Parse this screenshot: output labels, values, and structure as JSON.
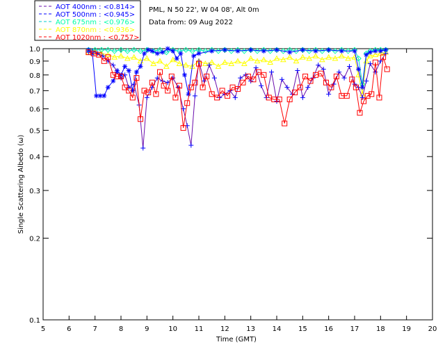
{
  "chart_data": {
    "type": "line",
    "title_lines": [
      "PML, N 50 22', W 04 08', Alt 0m",
      "Data from: 09 Aug 2022"
    ],
    "xlabel": "Time (GMT)",
    "ylabel": "Single Scattering Albedo (ω)",
    "xlim": [
      5,
      20
    ],
    "ylim": [
      0.1,
      1.0
    ],
    "yscale": "log",
    "grid": false,
    "legend_position": "top-left",
    "x_ticks": [
      5,
      6,
      7,
      8,
      9,
      10,
      11,
      12,
      13,
      14,
      15,
      16,
      17,
      18,
      19,
      20
    ],
    "x_tick_labels": [
      "5",
      "6",
      "7",
      "8",
      "9",
      "10",
      "11",
      "12",
      "13",
      "14",
      "15",
      "16",
      "17",
      "18",
      "19",
      "20"
    ],
    "y_ticks": [
      0.1,
      0.2,
      0.3,
      0.4,
      0.5,
      0.6,
      0.7,
      0.8,
      0.9,
      1.0
    ],
    "y_tick_labels": [
      "0.1",
      "0.2",
      "0.3",
      "0.4",
      "0.5",
      "0.6",
      "0.7",
      "0.8",
      "0.9",
      "1.0"
    ],
    "series": [
      {
        "name": "AOT 400nm",
        "legend_label": "AOT  400nm : <0.814>",
        "color": "#0000ff",
        "line_color": "#6a0dad",
        "marker": "plus",
        "x": [
          6.75,
          6.9,
          7.1,
          7.3,
          7.5,
          7.7,
          7.85,
          8.0,
          8.15,
          8.3,
          8.5,
          8.7,
          8.85,
          9.0,
          9.2,
          9.4,
          9.6,
          9.8,
          10.0,
          10.2,
          10.4,
          10.55,
          10.7,
          10.85,
          11.0,
          11.2,
          11.4,
          11.6,
          11.8,
          12.0,
          12.2,
          12.4,
          12.6,
          12.8,
          13.0,
          13.2,
          13.4,
          13.6,
          13.8,
          14.0,
          14.2,
          14.4,
          14.6,
          14.8,
          15.0,
          15.2,
          15.4,
          15.6,
          15.8,
          16.0,
          16.2,
          16.4,
          16.6,
          16.8,
          17.0,
          17.15,
          17.3,
          17.45,
          17.6,
          17.8,
          18.0,
          18.2
        ],
        "values": [
          0.97,
          0.98,
          0.96,
          0.94,
          0.9,
          0.87,
          0.82,
          0.78,
          0.8,
          0.72,
          0.74,
          0.62,
          0.43,
          0.66,
          0.72,
          0.78,
          0.76,
          0.75,
          0.78,
          0.72,
          0.6,
          0.52,
          0.44,
          0.67,
          0.9,
          0.76,
          0.87,
          0.78,
          0.66,
          0.68,
          0.7,
          0.66,
          0.78,
          0.8,
          0.76,
          0.85,
          0.73,
          0.66,
          0.82,
          0.64,
          0.77,
          0.72,
          0.68,
          0.83,
          0.66,
          0.72,
          0.78,
          0.87,
          0.84,
          0.68,
          0.74,
          0.82,
          0.78,
          0.86,
          0.74,
          0.72,
          0.66,
          0.76,
          0.88,
          0.82,
          0.9,
          0.96
        ]
      },
      {
        "name": "AOT 500nm",
        "legend_label": "AOT  500nm : <0.945>",
        "color": "#0000ff",
        "line_color": "#0000ff",
        "marker": "asterisk",
        "x": [
          6.75,
          6.9,
          7.05,
          7.2,
          7.35,
          7.5,
          7.7,
          7.85,
          8.0,
          8.15,
          8.3,
          8.45,
          8.6,
          8.75,
          8.9,
          9.05,
          9.2,
          9.4,
          9.6,
          9.8,
          10.0,
          10.15,
          10.3,
          10.45,
          10.6,
          10.8,
          11.0,
          11.5,
          12.0,
          12.5,
          13.0,
          13.5,
          14.0,
          14.5,
          15.0,
          15.5,
          16.0,
          16.5,
          17.0,
          17.15,
          17.3,
          17.45,
          17.6,
          17.8,
          18.0,
          18.2
        ],
        "values": [
          0.99,
          0.96,
          0.67,
          0.67,
          0.67,
          0.72,
          0.76,
          0.83,
          0.8,
          0.86,
          0.83,
          0.7,
          0.82,
          0.86,
          0.96,
          0.99,
          0.98,
          0.96,
          0.97,
          1.0,
          0.98,
          0.92,
          0.96,
          0.8,
          0.68,
          0.94,
          0.96,
          0.98,
          0.99,
          0.98,
          0.99,
          0.98,
          0.99,
          0.97,
          0.99,
          0.98,
          0.99,
          0.98,
          0.98,
          0.84,
          0.72,
          0.95,
          0.97,
          0.98,
          0.98,
          0.99
        ]
      },
      {
        "name": "AOT 675nm",
        "legend_label": "AOT  675nm : <0.976>",
        "color": "#00ffaa",
        "line_color": "#00cccc",
        "marker": "diamond",
        "x": [
          6.75,
          7.0,
          7.25,
          7.5,
          7.75,
          8.0,
          8.25,
          8.5,
          8.75,
          9.0,
          9.25,
          9.5,
          9.75,
          10.0,
          10.25,
          10.5,
          10.75,
          11.0,
          11.25,
          11.5,
          11.75,
          12.0,
          12.25,
          12.5,
          12.75,
          13.0,
          13.25,
          13.5,
          13.75,
          14.0,
          14.25,
          14.5,
          14.75,
          15.0,
          15.25,
          15.5,
          15.75,
          16.0,
          16.25,
          16.5,
          16.75,
          17.0,
          17.15,
          17.3,
          17.45,
          17.6,
          17.8,
          18.0,
          18.2
        ],
        "values": [
          0.99,
          0.99,
          0.99,
          0.99,
          0.98,
          0.99,
          0.98,
          0.99,
          0.98,
          0.99,
          0.98,
          0.99,
          0.97,
          0.99,
          0.98,
          0.99,
          0.98,
          0.99,
          0.98,
          0.99,
          0.98,
          0.99,
          0.98,
          0.99,
          0.98,
          0.99,
          0.98,
          0.99,
          0.98,
          0.99,
          0.98,
          0.99,
          0.98,
          0.99,
          0.98,
          0.99,
          0.98,
          0.99,
          0.98,
          0.99,
          0.98,
          0.99,
          0.92,
          0.74,
          0.96,
          0.98,
          0.99,
          0.99,
          0.99
        ]
      },
      {
        "name": "AOT 870nm",
        "legend_label": "AOT  870nm : <0.936>",
        "color": "#ffff00",
        "line_color": "#ffff00",
        "marker": "triangle",
        "x": [
          6.75,
          7.0,
          7.25,
          7.5,
          7.75,
          8.0,
          8.25,
          8.5,
          8.75,
          9.0,
          9.25,
          9.5,
          9.75,
          10.0,
          10.25,
          10.5,
          10.75,
          11.0,
          11.25,
          11.5,
          11.75,
          12.0,
          12.25,
          12.5,
          12.75,
          13.0,
          13.25,
          13.5,
          13.75,
          14.0,
          14.25,
          14.5,
          14.75,
          15.0,
          15.25,
          15.5,
          15.75,
          16.0,
          16.25,
          16.5,
          16.75,
          17.0,
          17.15,
          17.3,
          17.45,
          17.6,
          17.8,
          18.0,
          18.2
        ],
        "values": [
          0.97,
          0.97,
          0.96,
          0.95,
          0.93,
          0.94,
          0.92,
          0.93,
          0.9,
          0.92,
          0.88,
          0.9,
          0.86,
          0.91,
          0.88,
          0.87,
          0.86,
          0.9,
          0.88,
          0.89,
          0.86,
          0.89,
          0.88,
          0.9,
          0.88,
          0.92,
          0.9,
          0.91,
          0.89,
          0.92,
          0.91,
          0.93,
          0.9,
          0.93,
          0.92,
          0.94,
          0.91,
          0.93,
          0.92,
          0.94,
          0.92,
          0.93,
          0.8,
          0.68,
          0.9,
          0.94,
          0.95,
          0.96,
          0.97
        ]
      },
      {
        "name": "AOT 1020nm",
        "legend_label": "AOT 1020nm : <0.757>",
        "color": "#ff0000",
        "line_color": "#ff0000",
        "marker": "square",
        "x": [
          6.75,
          6.95,
          7.15,
          7.35,
          7.5,
          7.7,
          7.85,
          8.0,
          8.15,
          8.3,
          8.45,
          8.6,
          8.75,
          8.9,
          9.05,
          9.2,
          9.35,
          9.5,
          9.65,
          9.8,
          9.95,
          10.1,
          10.25,
          10.4,
          10.55,
          10.7,
          10.85,
          11.0,
          11.15,
          11.3,
          11.5,
          11.7,
          11.9,
          12.1,
          12.3,
          12.5,
          12.7,
          12.9,
          13.1,
          13.3,
          13.5,
          13.7,
          13.9,
          14.1,
          14.3,
          14.5,
          14.7,
          14.9,
          15.1,
          15.3,
          15.5,
          15.7,
          15.9,
          16.1,
          16.3,
          16.5,
          16.7,
          16.9,
          17.05,
          17.2,
          17.35,
          17.5,
          17.65,
          17.8,
          17.95,
          18.1,
          18.25
        ],
        "values": [
          0.97,
          0.96,
          0.95,
          0.9,
          0.93,
          0.8,
          0.79,
          0.79,
          0.72,
          0.7,
          0.66,
          0.78,
          0.55,
          0.7,
          0.69,
          0.75,
          0.68,
          0.82,
          0.73,
          0.7,
          0.79,
          0.66,
          0.73,
          0.51,
          0.63,
          0.72,
          0.75,
          0.88,
          0.72,
          0.79,
          0.68,
          0.66,
          0.7,
          0.67,
          0.72,
          0.71,
          0.75,
          0.79,
          0.77,
          0.82,
          0.8,
          0.66,
          0.65,
          0.65,
          0.53,
          0.65,
          0.69,
          0.72,
          0.79,
          0.76,
          0.8,
          0.81,
          0.75,
          0.72,
          0.79,
          0.67,
          0.67,
          0.77,
          0.72,
          0.58,
          0.64,
          0.67,
          0.68,
          0.89,
          0.66,
          0.93,
          0.84
        ]
      }
    ]
  }
}
